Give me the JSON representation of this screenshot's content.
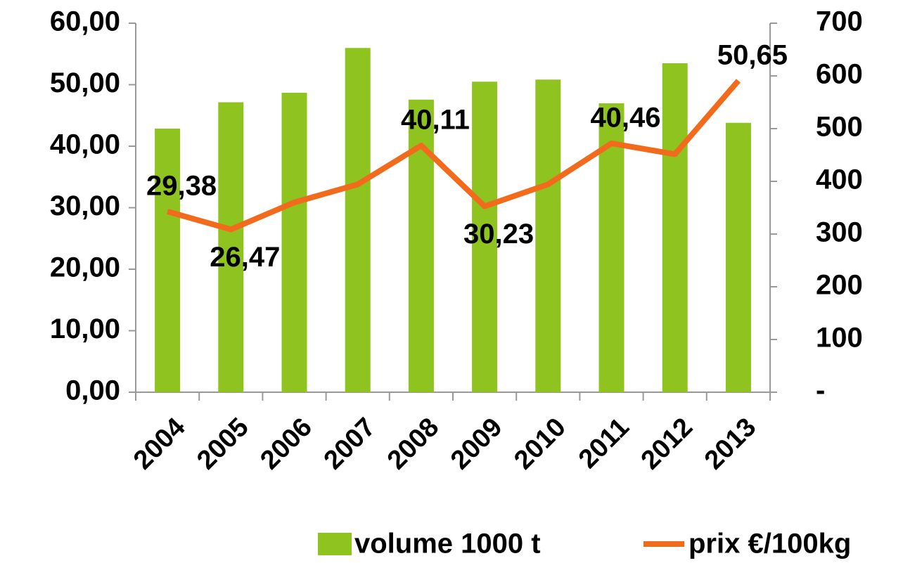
{
  "chart_data": {
    "type": "bar-line",
    "categories": [
      "2004",
      "2005",
      "2006",
      "2007",
      "2008",
      "2009",
      "2010",
      "2011",
      "2012",
      "2013"
    ],
    "series": [
      {
        "name": "volume 1000 t",
        "type": "bar",
        "axis": "y2",
        "color": "#8fc31f",
        "values": [
          500,
          550,
          568,
          653,
          555,
          589,
          593,
          548,
          624,
          511
        ]
      },
      {
        "name": "prix €/100kg",
        "type": "line",
        "axis": "y",
        "color": "#f26b1d",
        "values": [
          29.38,
          26.47,
          30.86,
          33.8,
          40.11,
          30.23,
          33.8,
          40.46,
          38.7,
          50.65
        ],
        "value_labels": [
          "29,38",
          "26,47",
          null,
          null,
          "40,11",
          "30,23",
          null,
          "40,46",
          null,
          "50,65"
        ]
      }
    ],
    "ylim": [
      0,
      60
    ],
    "yticks": [
      {
        "value": 0,
        "label": "0,00"
      },
      {
        "value": 10,
        "label": "10,00"
      },
      {
        "value": 20,
        "label": "20,00"
      },
      {
        "value": 30,
        "label": "30,00"
      },
      {
        "value": 40,
        "label": "40,00"
      },
      {
        "value": 50,
        "label": "50,00"
      },
      {
        "value": 60,
        "label": "60,00"
      }
    ],
    "y2lim": [
      0,
      700
    ],
    "y2ticks": [
      {
        "value": 0,
        "label": "-"
      },
      100,
      200,
      300,
      400,
      500,
      600,
      700
    ],
    "legend": "bottom",
    "grid": false
  }
}
